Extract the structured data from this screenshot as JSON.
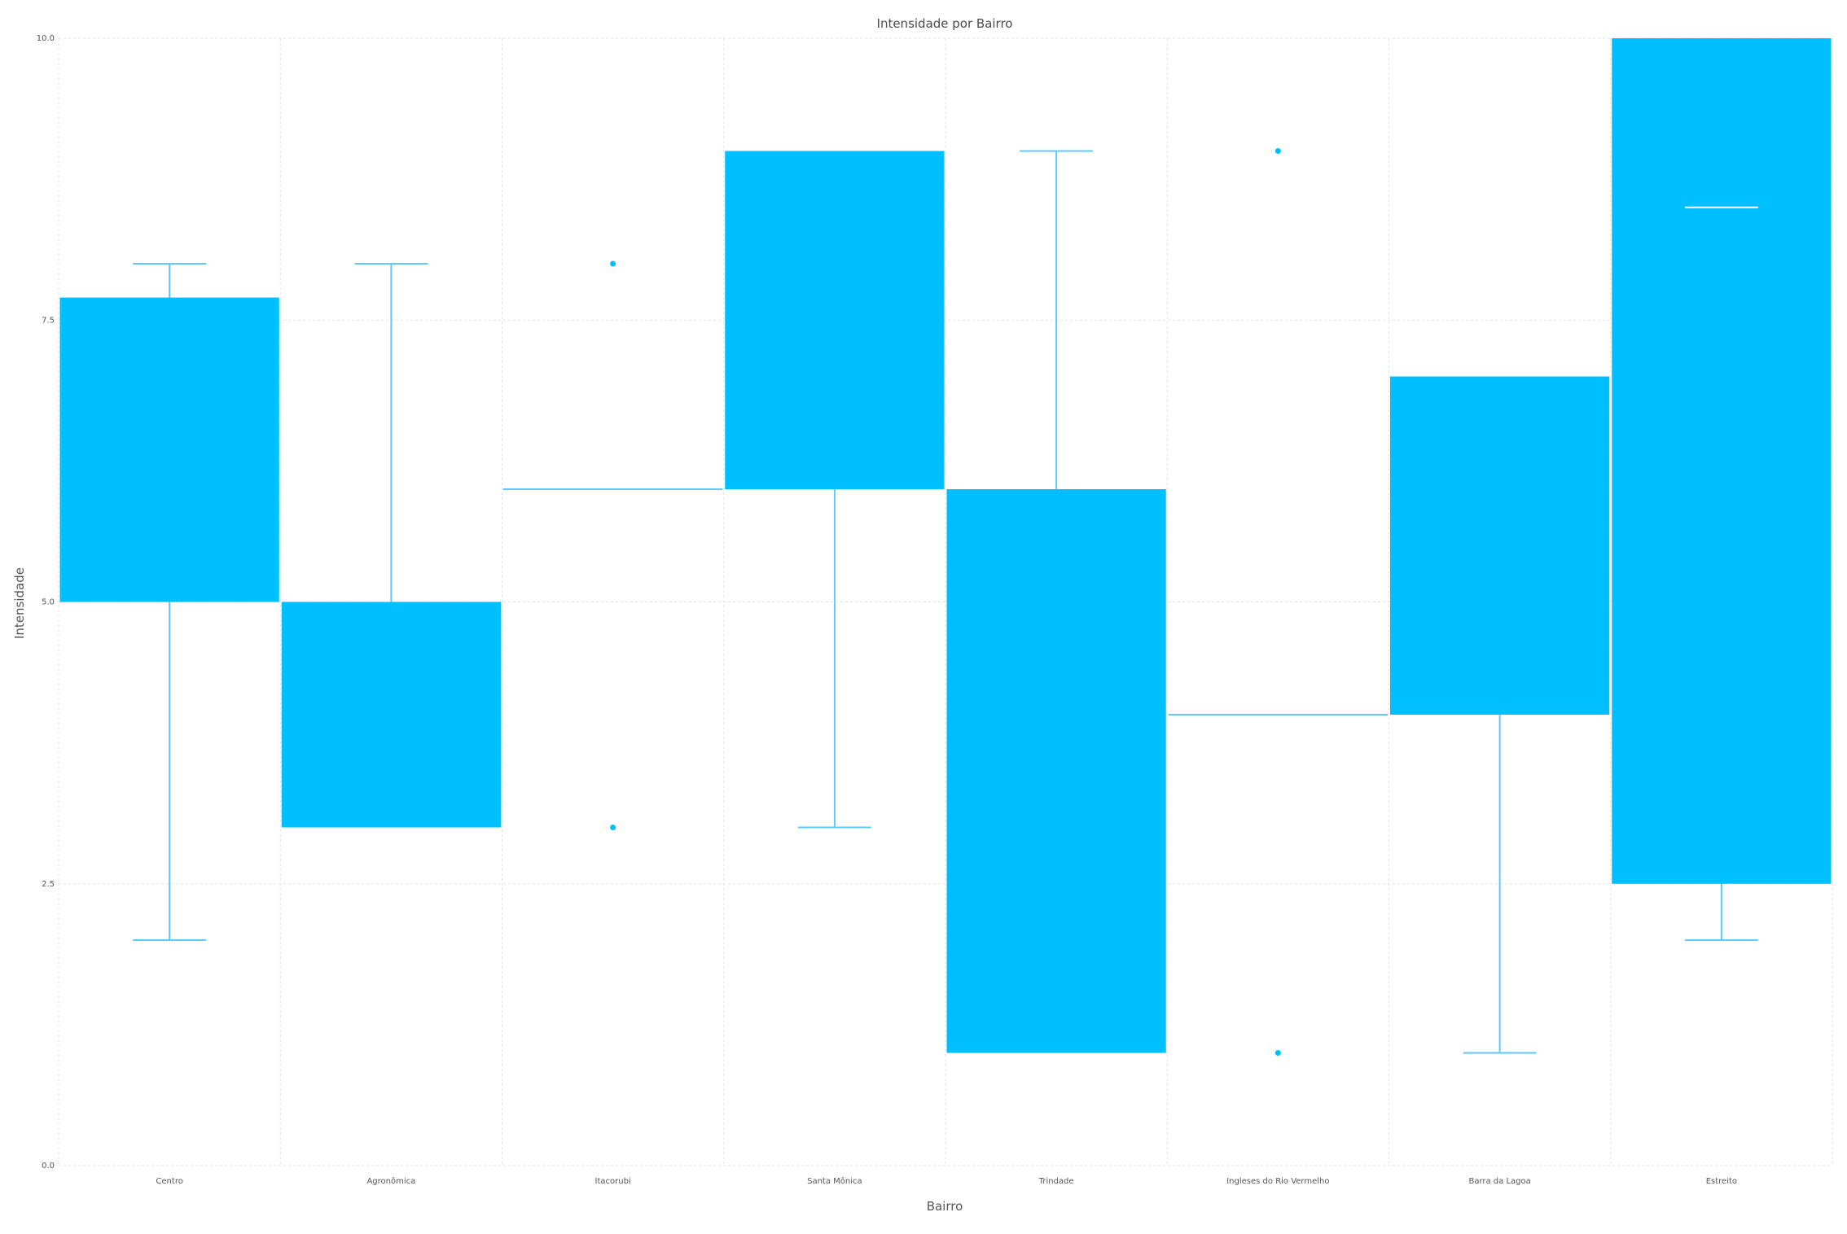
{
  "chart_data": {
    "type": "box",
    "title": "Intensidade por Bairro",
    "xlabel": "Bairro",
    "ylabel": "Intensidade",
    "ylim": [
      0,
      10
    ],
    "yticks": [
      "0.0",
      "2.5",
      "5.0",
      "7.5",
      "10.0"
    ],
    "ytick_values": [
      0,
      2.5,
      5,
      7.5,
      10
    ],
    "categories": [
      "Centro",
      "Agronômica",
      "Itacorubi",
      "Santa Mônica",
      "Trindade",
      "Ingleses do Rio Vermelho",
      "Barra da Lagoa",
      "Estreito"
    ],
    "boxes": [
      {
        "q1": 5,
        "median": 5,
        "q3": 7.7,
        "whisker_low": 2,
        "whisker_high": 8,
        "outliers": []
      },
      {
        "q1": 3,
        "median": 3,
        "q3": 5,
        "whisker_low": 3,
        "whisker_high": 8,
        "outliers": []
      },
      {
        "q1": 6,
        "median": 6,
        "q3": 6,
        "whisker_low": 6,
        "whisker_high": 6,
        "outliers": [
          8,
          3
        ]
      },
      {
        "q1": 6,
        "median": 9,
        "q3": 9,
        "whisker_low": 3,
        "whisker_high": 9,
        "outliers": []
      },
      {
        "q1": 1,
        "median": 1,
        "q3": 6,
        "whisker_low": 1,
        "whisker_high": 9,
        "outliers": []
      },
      {
        "q1": 4,
        "median": 4,
        "q3": 4,
        "whisker_low": 4,
        "whisker_high": 4,
        "outliers": [
          9,
          1
        ]
      },
      {
        "q1": 4,
        "median": 7,
        "q3": 7,
        "whisker_low": 1,
        "whisker_high": 7,
        "outliers": []
      },
      {
        "q1": 2.5,
        "median": 8.5,
        "q3": 10,
        "whisker_low": 2,
        "whisker_high": 10,
        "outliers": []
      }
    ],
    "colors": {
      "box": "#00bfff",
      "line": "#5ccaff",
      "median": "#ffffff",
      "grid": "#e2e2e2"
    },
    "grid": true
  }
}
